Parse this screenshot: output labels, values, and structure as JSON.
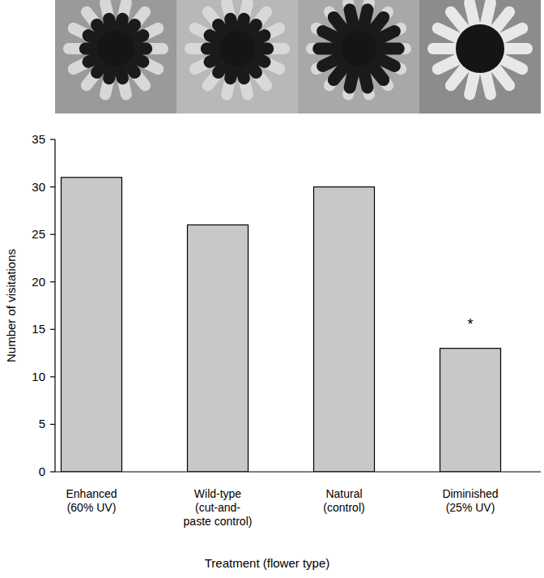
{
  "chart_data": {
    "type": "bar",
    "x_label": "Treatment (flower type)",
    "y_label": "Number of visitations",
    "categories": [
      "Enhanced\n(60% UV)",
      "Wild-type\n(cut-and-\npaste control)",
      "Natural\n(control)",
      "Diminished\n(25% UV)"
    ],
    "values": [
      31,
      26,
      30,
      13
    ],
    "color": "#c8c8c8",
    "ylim": [
      0,
      35
    ],
    "yticks": [
      0,
      5,
      10,
      15,
      20,
      25,
      30,
      35
    ],
    "grid": false,
    "annotations": [
      {
        "text": "*",
        "index": 3,
        "y": 15
      }
    ]
  }
}
